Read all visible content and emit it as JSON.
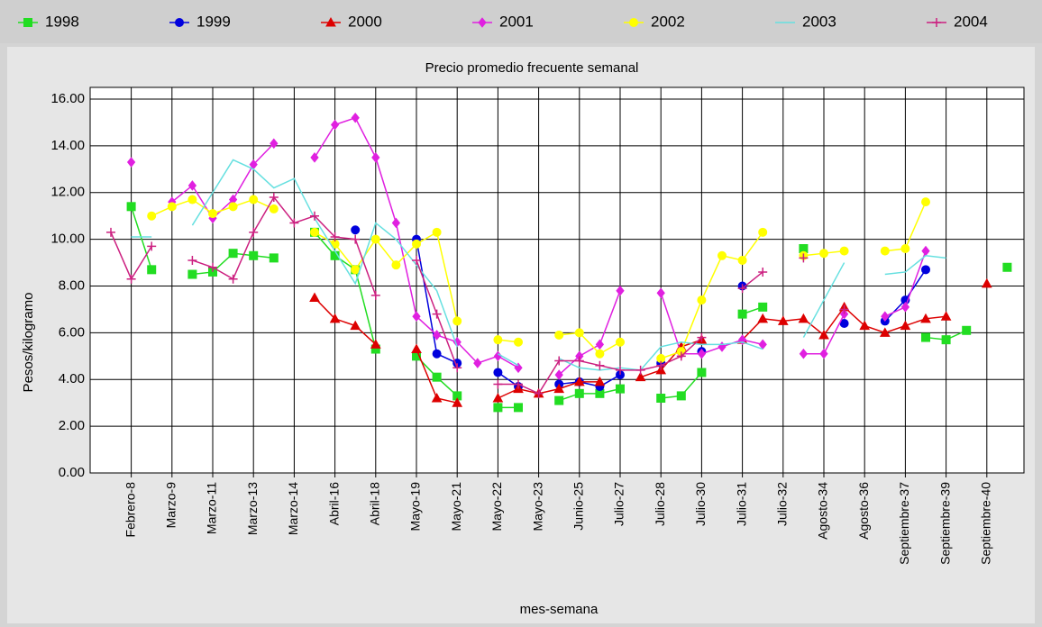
{
  "chart_data": {
    "type": "line",
    "title": "Precio promedio frecuente semanal",
    "x_label": "mes-semana",
    "y_label": "Pesos/kilogramo",
    "categories": [
      null,
      "Febrero-8",
      null,
      "Marzo-9",
      null,
      "Marzo-11",
      null,
      "Marzo-13",
      null,
      "Marzo-14",
      null,
      "Abril-16",
      null,
      "Abril-18",
      null,
      "Mayo-19",
      null,
      "Mayo-21",
      null,
      "Mayo-22",
      null,
      "Mayo-23",
      null,
      "Junio-25",
      null,
      "Julio-27",
      null,
      "Julio-28",
      null,
      "Julio-30",
      null,
      "Julio-31",
      null,
      "Julio-32",
      null,
      "Agosto-34",
      null,
      "Agosto-36",
      null,
      "Septiembre-37",
      null,
      "Septiembre-39",
      null,
      "Septiembre-40",
      null
    ],
    "ylim": [
      0,
      16
    ],
    "yticks": [
      {
        "value": 0,
        "label": "0.00"
      },
      {
        "value": 2,
        "label": "2.00"
      },
      {
        "value": 4,
        "label": "4.00"
      },
      {
        "value": 6,
        "label": "6.00"
      },
      {
        "value": 8,
        "label": "8.00"
      },
      {
        "value": 10,
        "label": "10.00"
      },
      {
        "value": 12,
        "label": "12.00"
      },
      {
        "value": 14,
        "label": "14.00"
      },
      {
        "value": 16,
        "label": "16.00"
      }
    ],
    "grid": true,
    "series": [
      {
        "name": "1998",
        "color": "#22dd22",
        "marker": "square",
        "values": [
          null,
          11.4,
          8.7,
          null,
          8.5,
          8.6,
          9.4,
          9.3,
          9.2,
          null,
          10.3,
          9.3,
          8.7,
          5.3,
          null,
          5.0,
          4.1,
          3.3,
          null,
          2.8,
          2.8,
          null,
          3.1,
          3.4,
          3.4,
          3.6,
          null,
          3.2,
          3.3,
          4.3,
          null,
          6.8,
          7.1,
          null,
          9.6,
          null,
          null,
          null,
          null,
          null,
          5.8,
          5.7,
          6.1,
          null,
          8.8
        ]
      },
      {
        "name": "1999",
        "color": "#0000dd",
        "marker": "circle",
        "values": [
          null,
          null,
          null,
          null,
          null,
          null,
          null,
          null,
          null,
          null,
          null,
          null,
          10.4,
          null,
          null,
          10.0,
          5.1,
          4.7,
          null,
          4.3,
          3.7,
          null,
          3.8,
          3.9,
          3.7,
          4.2,
          null,
          4.7,
          null,
          5.2,
          null,
          8.0,
          null,
          null,
          null,
          null,
          6.4,
          null,
          6.5,
          7.4,
          8.7,
          null,
          null,
          null,
          null
        ]
      },
      {
        "name": "2000",
        "color": "#dd0000",
        "marker": "triangle",
        "values": [
          null,
          null,
          null,
          null,
          null,
          null,
          null,
          null,
          null,
          null,
          7.5,
          6.6,
          6.3,
          5.5,
          null,
          5.3,
          3.2,
          3.0,
          null,
          3.2,
          3.6,
          3.4,
          3.6,
          3.9,
          3.9,
          null,
          4.1,
          4.4,
          5.4,
          5.7,
          null,
          5.7,
          6.6,
          6.5,
          6.6,
          5.9,
          7.1,
          6.3,
          6.0,
          6.3,
          6.6,
          6.7,
          null,
          8.1,
          null
        ]
      },
      {
        "name": "2001",
        "color": "#e020e0",
        "marker": "diamond",
        "values": [
          null,
          13.3,
          null,
          11.6,
          12.3,
          10.9,
          11.7,
          13.2,
          14.1,
          null,
          13.5,
          14.9,
          15.2,
          13.5,
          10.7,
          6.7,
          5.9,
          5.6,
          4.7,
          5.0,
          4.5,
          null,
          4.2,
          5.0,
          5.5,
          7.8,
          null,
          7.7,
          5.1,
          5.1,
          5.4,
          5.7,
          5.5,
          null,
          5.1,
          5.1,
          6.8,
          null,
          6.7,
          7.1,
          9.5,
          null,
          null,
          null,
          null
        ]
      },
      {
        "name": "2002",
        "color": "#ffff00",
        "marker": "circle",
        "values": [
          null,
          null,
          11.0,
          11.4,
          11.7,
          11.1,
          11.4,
          11.7,
          11.3,
          null,
          10.3,
          9.8,
          8.7,
          10.0,
          8.9,
          9.8,
          10.3,
          6.5,
          null,
          5.7,
          5.6,
          null,
          5.9,
          6.0,
          5.1,
          5.6,
          null,
          4.9,
          5.2,
          7.4,
          9.3,
          9.1,
          10.3,
          null,
          9.3,
          9.4,
          9.5,
          null,
          9.5,
          9.6,
          11.6,
          null,
          null,
          null,
          null
        ]
      },
      {
        "name": "2003",
        "color": "#66e0e0",
        "marker": "none",
        "values": [
          null,
          10.1,
          10.1,
          null,
          10.6,
          12.0,
          13.4,
          13.0,
          12.2,
          12.6,
          10.9,
          9.5,
          8.1,
          10.7,
          10.0,
          8.9,
          7.8,
          5.4,
          null,
          5.1,
          4.6,
          null,
          4.9,
          4.5,
          4.4,
          4.5,
          4.4,
          5.4,
          5.6,
          5.5,
          5.5,
          5.6,
          5.3,
          null,
          5.8,
          7.4,
          9.0,
          null,
          8.5,
          8.6,
          9.3,
          9.2,
          null,
          null,
          null
        ]
      },
      {
        "name": "2004",
        "color": "#cc2080",
        "marker": "plus",
        "values": [
          10.3,
          8.3,
          9.7,
          null,
          9.1,
          8.8,
          8.3,
          10.3,
          11.8,
          10.7,
          11.0,
          10.1,
          10.0,
          7.6,
          null,
          9.1,
          6.8,
          4.5,
          null,
          3.8,
          3.8,
          3.4,
          4.8,
          4.8,
          4.6,
          4.4,
          4.4,
          4.6,
          5.0,
          5.8,
          null,
          7.9,
          8.6,
          null,
          9.2,
          null,
          7.0,
          null,
          null,
          null,
          null,
          null,
          null,
          null,
          null
        ]
      }
    ]
  }
}
